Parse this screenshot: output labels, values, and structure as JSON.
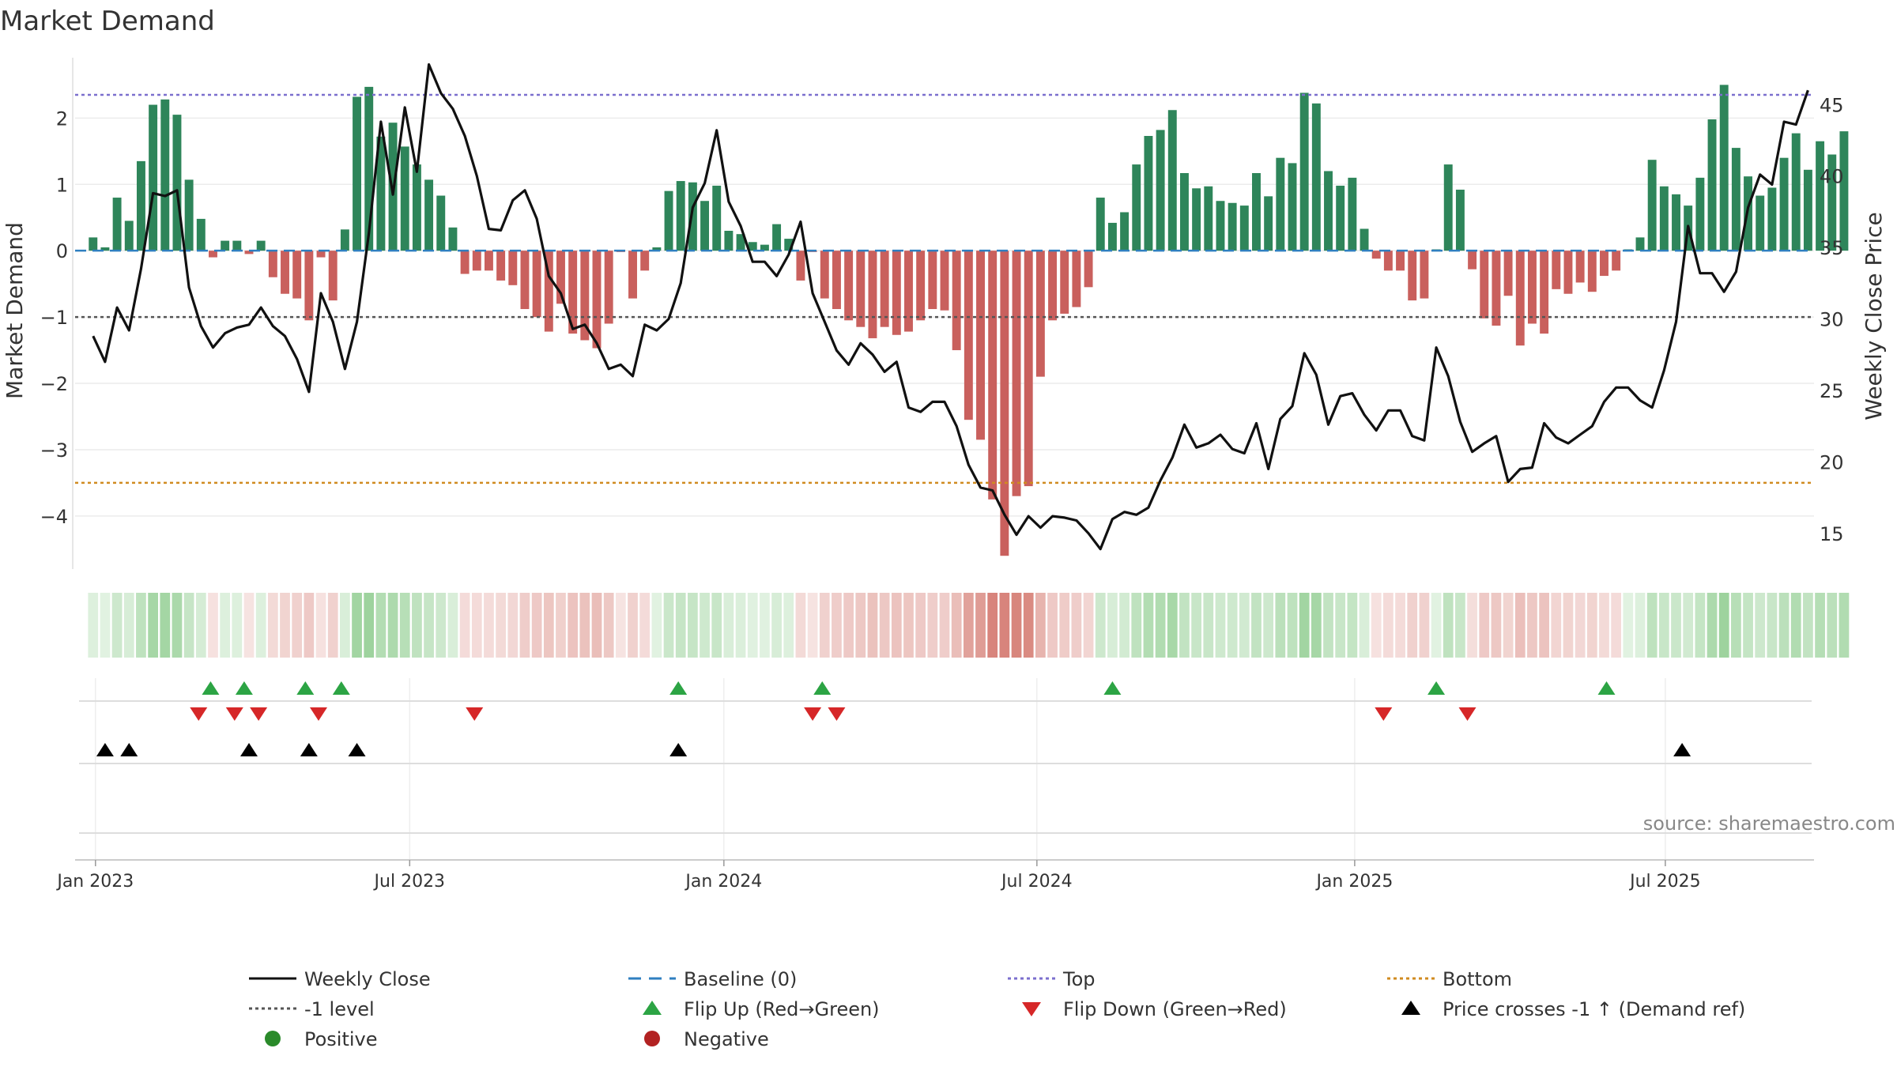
{
  "chart_data": {
    "type": "bar+line",
    "title": "Market Demand",
    "ylabel_left": "Market Demand",
    "ylabel_right": "Weekly Close Price",
    "ylim_left": [
      -4.8,
      2.85
    ],
    "ylim_right": [
      12.5,
      48.0
    ],
    "yticks_left": [
      2,
      1,
      0,
      -1,
      -2,
      -3,
      -4
    ],
    "yticks_left_labels": [
      "2",
      "1",
      "0",
      "−1",
      "−2",
      "−3",
      "−4"
    ],
    "yticks_right": [
      45,
      40,
      35,
      30,
      25,
      20,
      15
    ],
    "yticks_right_labels": [
      "45",
      "40",
      "35",
      "30",
      "25",
      "20",
      "15"
    ],
    "levels": {
      "top": 2.35,
      "bottom": -3.5,
      "minus_one": -1,
      "baseline": 0
    },
    "xlim": [
      -1.5,
      143.5
    ],
    "xticks": [
      {
        "week": 0.2,
        "label": "Jan 2023"
      },
      {
        "week": 26.4,
        "label": "Jul 2023"
      },
      {
        "week": 52.6,
        "label": "Jan 2024"
      },
      {
        "week": 78.7,
        "label": "Jul 2024"
      },
      {
        "week": 105.2,
        "label": "Jan 2025"
      },
      {
        "week": 131.1,
        "label": "Jul 2025"
      }
    ],
    "source": "source: sharemaestro.com",
    "demand": [
      0.2,
      0.05,
      0.8,
      0.45,
      1.35,
      2.2,
      2.28,
      2.05,
      1.07,
      0.48,
      -0.1,
      0.15,
      0.15,
      -0.05,
      0.15,
      -0.4,
      -0.65,
      -0.72,
      -1.05,
      -0.1,
      -0.75,
      0.32,
      2.32,
      2.47,
      1.72,
      1.93,
      1.57,
      1.3,
      1.07,
      0.83,
      0.35,
      -0.35,
      -0.3,
      -0.3,
      -0.45,
      -0.52,
      -0.88,
      -1.0,
      -1.22,
      -0.8,
      -1.25,
      -1.35,
      -1.47,
      -1.1,
      -0.02,
      -0.72,
      -0.3,
      0.05,
      0.9,
      1.05,
      1.03,
      0.75,
      0.98,
      0.3,
      0.25,
      0.13,
      0.09,
      0.4,
      0.18,
      -0.45,
      -0.02,
      -0.72,
      -0.88,
      -1.05,
      -1.15,
      -1.32,
      -1.15,
      -1.27,
      -1.22,
      -1.05,
      -0.88,
      -0.9,
      -1.5,
      -2.55,
      -2.85,
      -3.75,
      -4.6,
      -3.7,
      -3.55,
      -1.9,
      -1.05,
      -0.95,
      -0.85,
      -0.55,
      0.8,
      0.42,
      0.58,
      1.3,
      1.73,
      1.82,
      2.12,
      1.17,
      0.94,
      0.97,
      0.75,
      0.72,
      0.68,
      1.17,
      0.82,
      1.4,
      1.32,
      2.38,
      2.22,
      1.2,
      0.98,
      1.1,
      0.33,
      -0.12,
      -0.3,
      -0.3,
      -0.75,
      -0.72,
      0.02,
      1.3,
      0.92,
      -0.28,
      -1.02,
      -1.13,
      -0.68,
      -1.43,
      -1.1,
      -1.25,
      -0.58,
      -0.65,
      -0.48,
      -0.62,
      -0.38,
      -0.3,
      0.02,
      0.2,
      1.37,
      0.97,
      0.85,
      0.68,
      1.1,
      1.98,
      2.5,
      1.55,
      1.12,
      0.83,
      0.95,
      1.4,
      1.77,
      1.22,
      1.65,
      1.45,
      1.8
    ],
    "price": [
      28.8,
      27.0,
      30.8,
      29.2,
      33.5,
      38.8,
      38.6,
      39.0,
      32.2,
      29.5,
      28.0,
      29.0,
      29.4,
      29.6,
      30.8,
      29.5,
      28.8,
      27.2,
      24.9,
      31.8,
      29.8,
      26.5,
      29.8,
      36.0,
      43.8,
      38.7,
      44.8,
      40.3,
      47.8,
      45.8,
      44.7,
      42.8,
      40.0,
      36.3,
      36.2,
      38.3,
      39.0,
      37.0,
      33.0,
      31.8,
      29.3,
      29.6,
      28.3,
      26.5,
      26.8,
      26.0,
      29.6,
      29.2,
      30.0,
      32.5,
      37.8,
      39.5,
      43.2,
      38.2,
      36.5,
      34.0,
      34.0,
      33.0,
      34.5,
      36.8,
      31.8,
      29.8,
      27.8,
      26.8,
      28.3,
      27.5,
      26.3,
      27.0,
      23.8,
      23.5,
      24.2,
      24.2,
      22.5,
      19.8,
      18.2,
      18.0,
      16.3,
      14.9,
      16.2,
      15.4,
      16.2,
      16.1,
      15.9,
      15.0,
      13.9,
      16.0,
      16.5,
      16.3,
      16.8,
      18.7,
      20.3,
      22.6,
      21.0,
      21.3,
      21.9,
      20.9,
      20.6,
      22.7,
      19.5,
      23.0,
      23.9,
      27.6,
      26.1,
      22.6,
      24.6,
      24.8,
      23.3,
      22.2,
      23.6,
      23.6,
      21.8,
      21.5,
      28.0,
      26.0,
      22.8,
      20.7,
      21.3,
      21.8,
      18.6,
      19.5,
      19.6,
      22.7,
      21.7,
      21.3,
      21.9,
      22.5,
      24.2,
      25.2,
      25.2,
      24.3,
      23.8,
      26.4,
      29.8,
      36.5,
      33.2,
      33.2,
      31.9,
      33.3,
      37.8,
      40.1,
      39.4,
      43.8,
      43.6,
      46.0
    ],
    "flip_up_weeks": [
      9.8,
      12.6,
      17.7,
      20.7,
      48.8,
      60.8,
      85.0,
      112.0,
      126.2
    ],
    "flip_down_weeks": [
      8.8,
      11.8,
      13.8,
      18.8,
      31.8,
      60.0,
      62.0,
      107.6,
      114.6
    ],
    "price_cross_weeks": [
      1.0,
      3.0,
      13.0,
      18.0,
      22.0,
      48.8,
      132.5
    ],
    "legend": [
      {
        "label": "Weekly Close",
        "symbol": "line-solid",
        "color": "#111111"
      },
      {
        "label": "Baseline (0)",
        "symbol": "line-dash",
        "color": "#2f7fc0"
      },
      {
        "label": "Top",
        "symbol": "line-dot",
        "color": "#7b6fce"
      },
      {
        "label": "Bottom",
        "symbol": "line-dot",
        "color": "#d08b20"
      },
      {
        "label": "-1 level",
        "symbol": "line-dot",
        "color": "#555555"
      },
      {
        "label": "Flip Up (Red→Green)",
        "symbol": "triangle-up",
        "color": "#2ca444"
      },
      {
        "label": "Flip Down (Green→Red)",
        "symbol": "triangle-down",
        "color": "#d62728"
      },
      {
        "label": "Price crosses -1 ↑ (Demand ref)",
        "symbol": "triangle-up",
        "color": "#000000"
      },
      {
        "label": "Positive",
        "symbol": "dot",
        "color": "#2a8a2a"
      },
      {
        "label": "Negative",
        "symbol": "dot",
        "color": "#b22222"
      }
    ]
  },
  "colors": {
    "positive_bar": "#2e855a",
    "negative_bar": "#c9605d",
    "price_line": "#111111",
    "flip_up": "#2ca444",
    "flip_down": "#d62728",
    "cross": "#000000"
  }
}
